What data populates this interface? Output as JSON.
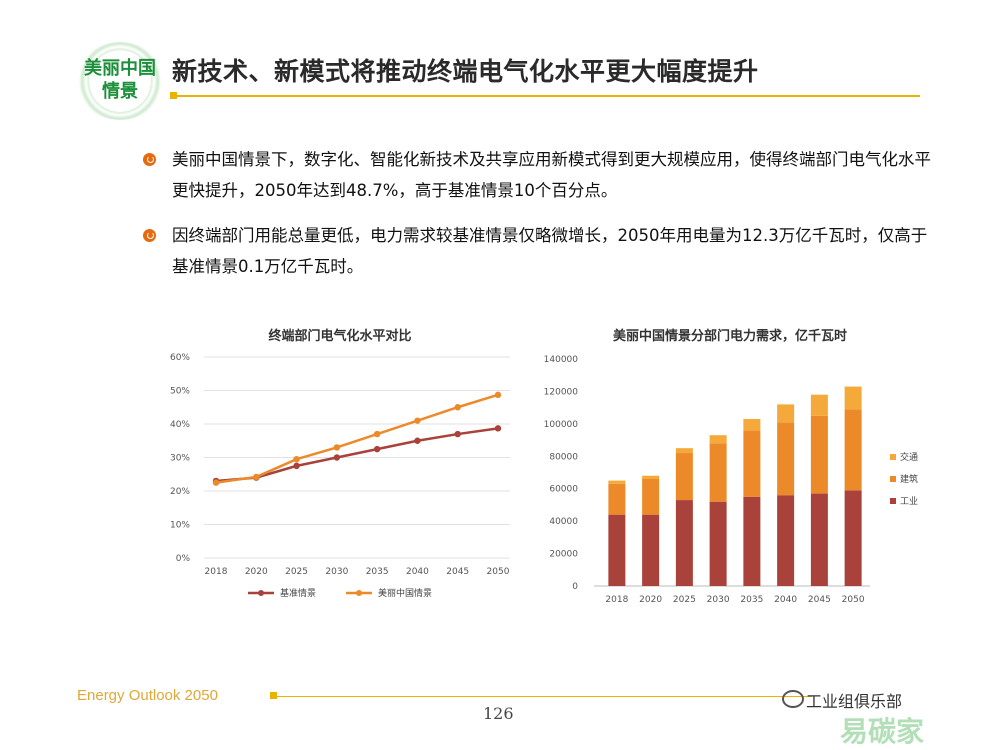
{
  "logo": {
    "line1": "美丽中国",
    "line2": "情景"
  },
  "header": {
    "title": "新技术、新模式将推动终端电气化水平更大幅度提升"
  },
  "bullets": [
    "美丽中国情景下，数字化、智能化新技术及共享应用新模式得到更大规模应用，使得终端部门电气化水平更快提升，2050年达到48.7%，高于基准情景10个百分点。",
    "因终端部门用能总量更低，电力需求较基准情景仅略微增长，2050年用电量为12.3万亿千瓦时，仅高于基准情景0.1万亿千瓦时。"
  ],
  "chart_data": [
    {
      "type": "line",
      "title": "终端部门电气化水平对比",
      "x": [
        "2018",
        "2020",
        "2025",
        "2030",
        "2035",
        "2040",
        "2045",
        "2050"
      ],
      "y_ticks": [
        "0%",
        "10%",
        "20%",
        "30%",
        "40%",
        "50%",
        "60%"
      ],
      "ylim": [
        0,
        60
      ],
      "grid": true,
      "legend_position": "bottom",
      "series": [
        {
          "name": "基准情景",
          "color": "#a8423a",
          "values": [
            23,
            24,
            27.5,
            30,
            32.5,
            35,
            37,
            38.7
          ]
        },
        {
          "name": "美丽中国情景",
          "color": "#ec8a2a",
          "values": [
            22.5,
            24.2,
            29.5,
            33,
            37,
            41,
            45,
            48.7
          ]
        }
      ]
    },
    {
      "type": "bar",
      "stacked": true,
      "title": "美丽中国情景分部门电力需求，亿千瓦时",
      "categories": [
        "2018",
        "2020",
        "2025",
        "2030",
        "2035",
        "2040",
        "2045",
        "2050"
      ],
      "y_ticks": [
        "0",
        "20000",
        "40000",
        "60000",
        "80000",
        "100000",
        "120000",
        "140000"
      ],
      "ylim": [
        0,
        140000
      ],
      "grid": false,
      "legend_position": "right",
      "series": [
        {
          "name": "工业",
          "color": "#a8423a",
          "values": [
            44000,
            44000,
            53000,
            52000,
            55000,
            56000,
            57000,
            59000
          ]
        },
        {
          "name": "建筑",
          "color": "#ec8a2a",
          "values": [
            19000,
            22000,
            29000,
            36000,
            41000,
            45000,
            48000,
            50000
          ]
        },
        {
          "name": "交通",
          "color": "#f4a93a",
          "values": [
            2000,
            2000,
            3000,
            5000,
            7000,
            11000,
            13000,
            14000
          ]
        }
      ]
    }
  ],
  "footer": {
    "brand": "Energy Outlook 2050",
    "page": "126",
    "watermark": "工业组俱乐部",
    "watermark_big": "易碳家"
  }
}
